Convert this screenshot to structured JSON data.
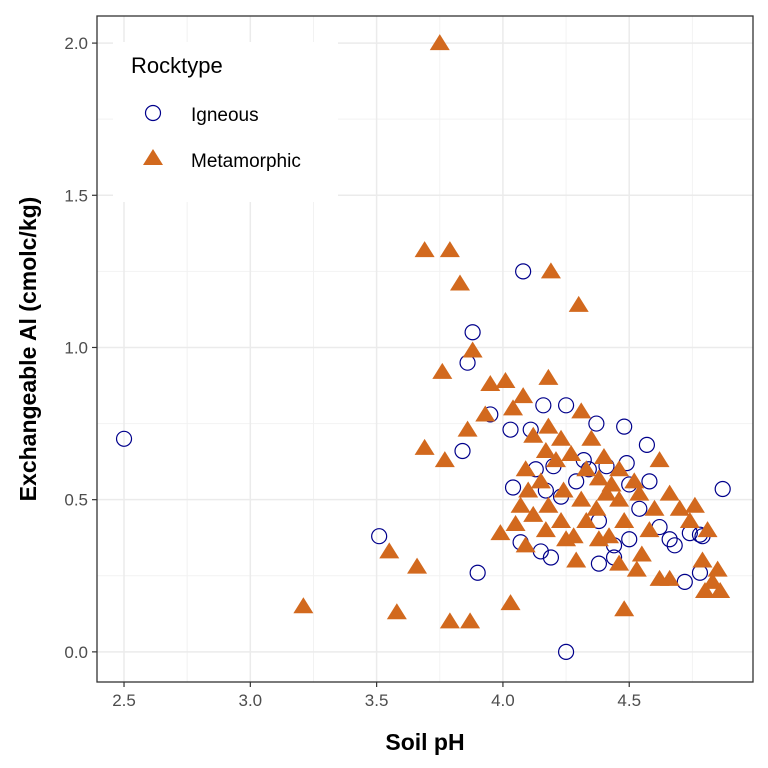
{
  "chart_data": {
    "type": "scatter",
    "title": "",
    "xlabel": "Soil pH",
    "ylabel": "Exchangeable Al (cmolc/kg)",
    "xlim": [
      2.393,
      4.99
    ],
    "ylim": [
      -0.099,
      2.089
    ],
    "xticks": [
      2.5,
      3.0,
      3.5,
      4.0,
      4.5
    ],
    "xtick_labels": [
      "2.5",
      "3.0",
      "3.5",
      "4.0",
      "4.5"
    ],
    "yticks": [
      0.0,
      0.5,
      1.0,
      1.5,
      2.0
    ],
    "ytick_labels": [
      "0.0",
      "0.5",
      "1.0",
      "1.5",
      "2.0"
    ],
    "grid": true,
    "legend": {
      "title": "Rocktype",
      "position": "top-left"
    },
    "series": [
      {
        "name": "Igneous",
        "marker": "open-circle",
        "color": "#00008B",
        "points": [
          [
            2.5,
            0.7
          ],
          [
            3.51,
            0.38
          ],
          [
            3.84,
            0.66
          ],
          [
            3.88,
            1.05
          ],
          [
            3.9,
            0.26
          ],
          [
            3.86,
            0.95
          ],
          [
            3.95,
            0.78
          ],
          [
            4.08,
            1.25
          ],
          [
            4.03,
            0.73
          ],
          [
            4.04,
            0.54
          ],
          [
            4.16,
            0.81
          ],
          [
            4.25,
            0.81
          ],
          [
            4.25,
            0.0
          ],
          [
            4.37,
            0.75
          ],
          [
            4.48,
            0.74
          ],
          [
            4.57,
            0.68
          ],
          [
            4.87,
            0.535
          ],
          [
            4.19,
            0.31
          ],
          [
            4.15,
            0.33
          ],
          [
            4.38,
            0.29
          ],
          [
            4.44,
            0.31
          ],
          [
            4.78,
            0.385
          ],
          [
            4.79,
            0.38
          ],
          [
            4.74,
            0.39
          ],
          [
            4.72,
            0.23
          ],
          [
            4.78,
            0.26
          ],
          [
            4.07,
            0.36
          ],
          [
            4.2,
            0.61
          ],
          [
            4.32,
            0.63
          ],
          [
            4.41,
            0.61
          ],
          [
            4.49,
            0.62
          ],
          [
            4.5,
            0.55
          ],
          [
            4.58,
            0.56
          ],
          [
            4.23,
            0.51
          ],
          [
            4.54,
            0.47
          ],
          [
            4.62,
            0.41
          ],
          [
            4.66,
            0.37
          ],
          [
            4.68,
            0.35
          ],
          [
            4.5,
            0.37
          ],
          [
            4.44,
            0.35
          ],
          [
            4.34,
            0.6
          ],
          [
            4.29,
            0.56
          ],
          [
            4.17,
            0.53
          ],
          [
            4.38,
            0.43
          ],
          [
            4.13,
            0.6
          ],
          [
            4.11,
            0.73
          ]
        ]
      },
      {
        "name": "Metamorphic",
        "marker": "filled-triangle",
        "color": "#D2691E",
        "points": [
          [
            3.75,
            2.0
          ],
          [
            3.69,
            1.32
          ],
          [
            3.79,
            1.32
          ],
          [
            3.83,
            1.21
          ],
          [
            4.19,
            1.25
          ],
          [
            4.3,
            1.14
          ],
          [
            3.88,
            0.99
          ],
          [
            3.76,
            0.92
          ],
          [
            4.18,
            0.9
          ],
          [
            3.95,
            0.88
          ],
          [
            4.01,
            0.89
          ],
          [
            4.08,
            0.84
          ],
          [
            4.04,
            0.8
          ],
          [
            3.93,
            0.78
          ],
          [
            3.86,
            0.73
          ],
          [
            3.69,
            0.67
          ],
          [
            3.77,
            0.63
          ],
          [
            4.31,
            0.79
          ],
          [
            4.23,
            0.7
          ],
          [
            4.12,
            0.71
          ],
          [
            4.18,
            0.74
          ],
          [
            4.35,
            0.7
          ],
          [
            4.4,
            0.64
          ],
          [
            4.17,
            0.66
          ],
          [
            4.09,
            0.6
          ],
          [
            4.21,
            0.63
          ],
          [
            4.27,
            0.65
          ],
          [
            4.46,
            0.6
          ],
          [
            4.52,
            0.56
          ],
          [
            4.62,
            0.63
          ],
          [
            4.66,
            0.52
          ],
          [
            4.74,
            0.43
          ],
          [
            4.81,
            0.4
          ],
          [
            4.79,
            0.3
          ],
          [
            4.83,
            0.23
          ],
          [
            4.85,
            0.27
          ],
          [
            4.8,
            0.2
          ],
          [
            4.86,
            0.2
          ],
          [
            4.42,
            0.38
          ],
          [
            4.37,
            0.47
          ],
          [
            4.31,
            0.5
          ],
          [
            4.23,
            0.43
          ],
          [
            4.17,
            0.4
          ],
          [
            4.09,
            0.35
          ],
          [
            3.99,
            0.39
          ],
          [
            4.05,
            0.42
          ],
          [
            4.12,
            0.45
          ],
          [
            4.25,
            0.37
          ],
          [
            4.29,
            0.3
          ],
          [
            4.46,
            0.29
          ],
          [
            4.53,
            0.27
          ],
          [
            4.55,
            0.32
          ],
          [
            4.62,
            0.24
          ],
          [
            4.66,
            0.24
          ],
          [
            4.48,
            0.14
          ],
          [
            3.55,
            0.33
          ],
          [
            3.66,
            0.28
          ],
          [
            3.58,
            0.13
          ],
          [
            3.21,
            0.15
          ],
          [
            3.79,
            0.1
          ],
          [
            3.87,
            0.1
          ],
          [
            4.03,
            0.16
          ],
          [
            4.33,
            0.43
          ],
          [
            4.41,
            0.52
          ],
          [
            4.46,
            0.5
          ],
          [
            4.54,
            0.52
          ],
          [
            4.6,
            0.47
          ],
          [
            4.38,
            0.57
          ],
          [
            4.43,
            0.55
          ],
          [
            4.48,
            0.43
          ],
          [
            4.58,
            0.4
          ],
          [
            4.7,
            0.47
          ],
          [
            4.76,
            0.48
          ],
          [
            4.28,
            0.38
          ],
          [
            4.18,
            0.48
          ],
          [
            4.15,
            0.56
          ],
          [
            4.1,
            0.53
          ],
          [
            4.07,
            0.48
          ],
          [
            4.33,
            0.6
          ],
          [
            4.24,
            0.53
          ],
          [
            4.38,
            0.37
          ]
        ]
      }
    ]
  }
}
